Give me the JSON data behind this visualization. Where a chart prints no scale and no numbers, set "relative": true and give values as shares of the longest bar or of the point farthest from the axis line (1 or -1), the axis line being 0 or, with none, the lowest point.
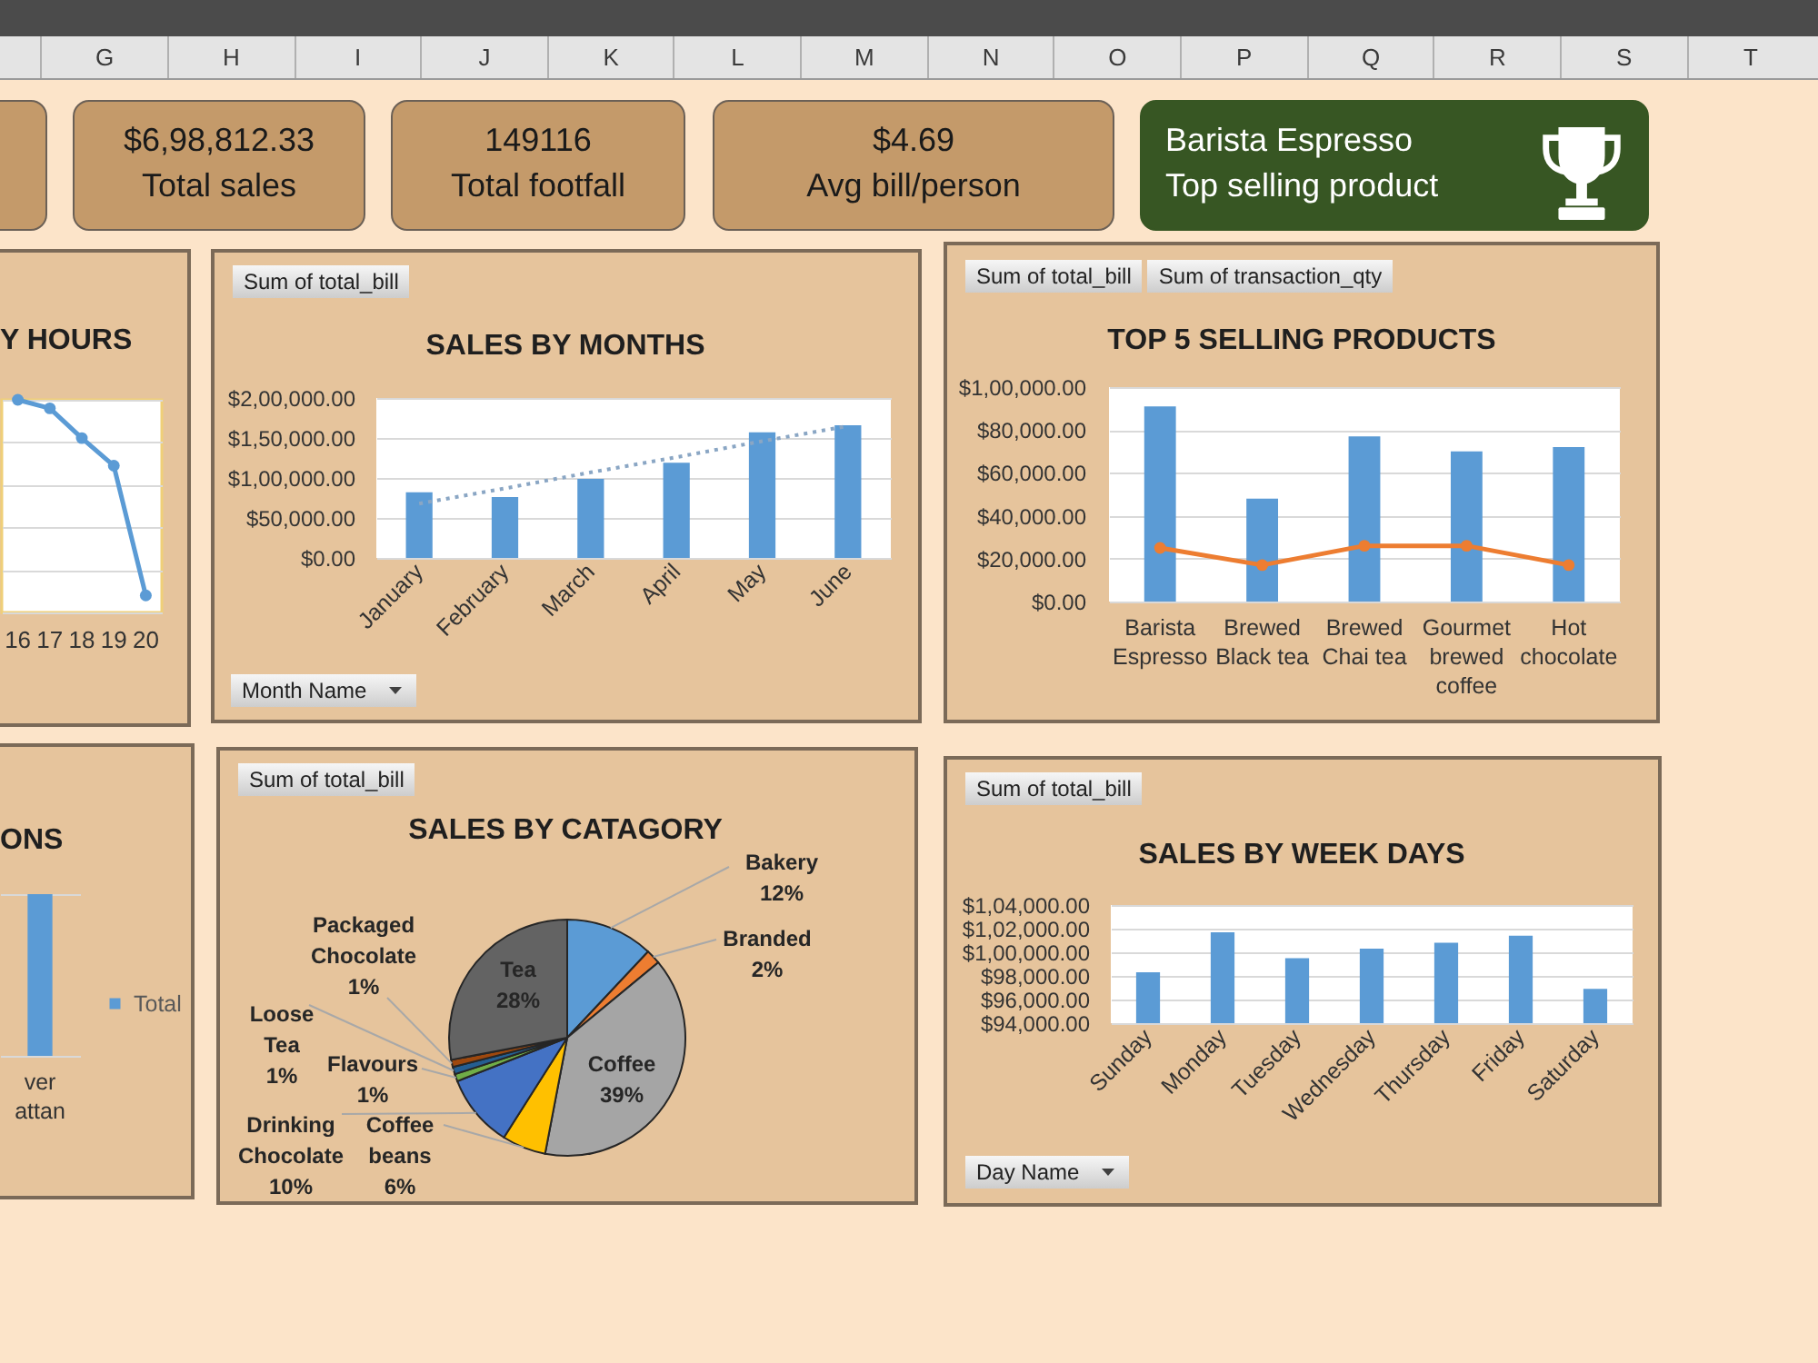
{
  "chart_data": [
    {
      "type": "other",
      "annotations": [
        "G",
        "H",
        "I",
        "J",
        "K",
        "L",
        "M",
        "N",
        "O",
        "P",
        "Q",
        "R",
        "S",
        "T"
      ]
    },
    {
      "type": "other",
      "annotations": [
        "$6,98,812.33",
        "Total sales"
      ]
    },
    {
      "type": "other",
      "annotations": [
        "149116",
        "Total footfall"
      ]
    },
    {
      "type": "other",
      "annotations": [
        "$4.69",
        "Avg bill/person"
      ]
    },
    {
      "type": "other",
      "annotations": [
        "Barista Espresso",
        "Top selling product"
      ]
    },
    {
      "type": "line",
      "title": "Y HOURS",
      "categories": [
        "16",
        "17",
        "18",
        "19",
        "20"
      ],
      "values": [
        1,
        0.96,
        0.82,
        0.69,
        0.08
      ],
      "color": "#5b9bd5",
      "relative": true,
      "grid": "y",
      "marker": "circle"
    },
    {
      "type": "bar",
      "title": "SALES BY MONTHS",
      "annotations": [
        "Sum of total_bill"
      ],
      "xlabel": "Month Name",
      "categories": [
        "January",
        "February",
        "March",
        "April",
        "May",
        "June"
      ],
      "series": [
        {
          "color": "#5b9bd5",
          "values": [
            82000,
            76000,
            99000,
            119000,
            157000,
            166000
          ]
        },
        {
          "type": "line",
          "color": "#8aa6c4",
          "line_style": "dotted",
          "values": [
            68000,
            87000,
            107000,
            126000,
            146000,
            165000
          ]
        }
      ],
      "ylim": [
        0,
        200000
      ],
      "yticks": [
        {
          "value": 0,
          "label": "$0.00"
        },
        {
          "value": 50000,
          "label": "$50,000.00"
        },
        {
          "value": 100000,
          "label": "$1,00,000.00"
        },
        {
          "value": 150000,
          "label": "$1,50,000.00"
        },
        {
          "value": 200000,
          "label": "$2,00,000.00"
        }
      ],
      "grid": "y"
    },
    {
      "type": "bar",
      "title": "TOP 5 SELLING PRODUCTS",
      "annotations": [
        "Sum of total_bill",
        "Sum of transaction_qty"
      ],
      "categories": [
        "Barista Espresso",
        "Brewed Black tea",
        "Brewed Chai tea",
        "Gourmet brewed coffee",
        "Hot chocolate"
      ],
      "series": [
        {
          "color": "#5b9bd5",
          "values": [
            91000,
            48000,
            77000,
            70000,
            72000
          ]
        },
        {
          "type": "line",
          "color": "#ed7d31",
          "marker": "circle",
          "values": [
            25000,
            17000,
            26000,
            26000,
            17000
          ]
        }
      ],
      "ylim": [
        0,
        100000
      ],
      "yticks": [
        {
          "value": 0,
          "label": "$0.00"
        },
        {
          "value": 20000,
          "label": "$20,000.00"
        },
        {
          "value": 40000,
          "label": "$40,000.00"
        },
        {
          "value": 60000,
          "label": "$60,000.00"
        },
        {
          "value": 80000,
          "label": "$80,000.00"
        },
        {
          "value": 100000,
          "label": "$1,00,000.00"
        }
      ],
      "grid": "y"
    },
    {
      "type": "bar",
      "title": "ONS",
      "categories": [
        "ver attan"
      ],
      "series": [
        {
          "name": "Total",
          "color": "#5b9bd5",
          "values": [
            1
          ]
        }
      ],
      "relative": true,
      "grid": "y",
      "legend": "right"
    },
    {
      "type": "pie",
      "title": "SALES BY CATAGORY",
      "annotations": [
        "Sum of total_bill"
      ],
      "categories": [
        "Bakery",
        "Branded",
        "Coffee",
        "Coffee beans",
        "Drinking Chocolate",
        "Flavours",
        "Loose Tea",
        "Packaged Chocolate",
        "Tea"
      ],
      "values": [
        12,
        2,
        39,
        6,
        10,
        1,
        1,
        1,
        28
      ],
      "value_labels": [
        "12%",
        "2%",
        "39%",
        "6%",
        "10%",
        "1%",
        "1%",
        "1%",
        "28%"
      ],
      "colors": [
        "#5b9bd5",
        "#ed7d31",
        "#a5a5a5",
        "#ffc000",
        "#4472c4",
        "#70ad47",
        "#255e91",
        "#9e480e",
        "#636363"
      ]
    },
    {
      "type": "bar",
      "title": "SALES BY WEEK DAYS",
      "annotations": [
        "Sum of total_bill"
      ],
      "xlabel": "Day Name",
      "categories": [
        "Sunday",
        "Monday",
        "Tuesday",
        "Wednesday",
        "Thursday",
        "Friday",
        "Saturday"
      ],
      "values": [
        98300,
        101700,
        99500,
        100300,
        100800,
        101400,
        96900
      ],
      "color": "#5b9bd5",
      "ylim": [
        94000,
        104000
      ],
      "yticks": [
        {
          "value": 94000,
          "label": "$94,000.00"
        },
        {
          "value": 96000,
          "label": "$96,000.00"
        },
        {
          "value": 98000,
          "label": "$98,000.00"
        },
        {
          "value": 100000,
          "label": "$1,00,000.00"
        },
        {
          "value": 102000,
          "label": "$1,02,000.00"
        },
        {
          "value": 104000,
          "label": "$1,04,000.00"
        }
      ],
      "grid": "y"
    }
  ]
}
